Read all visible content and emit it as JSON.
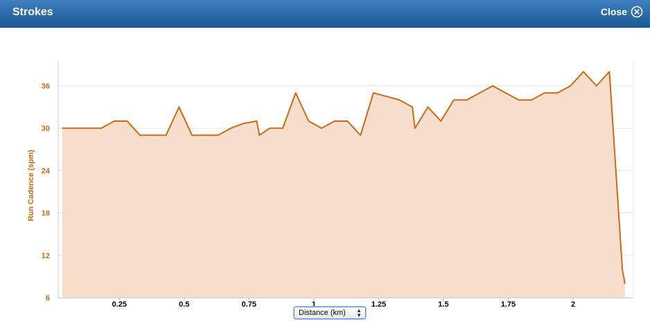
{
  "window": {
    "title": "Strokes",
    "close_label": "Close"
  },
  "x_axis_selector": {
    "selected": "Distance (km)"
  },
  "colors": {
    "accent": "#cc6a14",
    "fill": "#f5dfcc",
    "titlebar": "#2a68a8",
    "grid": "#e6e6e6"
  },
  "chart_data": {
    "type": "area",
    "title": "",
    "xlabel": "Distance (km)",
    "ylabel": "Run Cadence (spm)",
    "xlim": [
      0.03,
      2.2
    ],
    "ylim": [
      6,
      39
    ],
    "x_ticks": [
      0.25,
      0.5,
      0.75,
      1,
      1.25,
      1.5,
      1.75,
      2
    ],
    "x_tick_labels": [
      "0.25",
      "0.5",
      "0.75",
      "1",
      "1.25",
      "1.5",
      "1.75",
      "2"
    ],
    "y_ticks": [
      6,
      12,
      18,
      24,
      30,
      36
    ],
    "y_tick_labels": [
      "6",
      "12",
      "18",
      "24",
      "30",
      "36"
    ],
    "grid": true,
    "series": [
      {
        "x": [
          0.03,
          0.08,
          0.13,
          0.18,
          0.23,
          0.28,
          0.33,
          0.38,
          0.43,
          0.48,
          0.53,
          0.58,
          0.63,
          0.68,
          0.73,
          0.78,
          0.79,
          0.83,
          0.88,
          0.93,
          0.98,
          1.03,
          1.08,
          1.13,
          1.18,
          1.23,
          1.28,
          1.33,
          1.38,
          1.39,
          1.44,
          1.49,
          1.54,
          1.59,
          1.64,
          1.69,
          1.74,
          1.79,
          1.84,
          1.89,
          1.94,
          1.99,
          2.04,
          2.09,
          2.14,
          2.19,
          2.2
        ],
        "values": [
          30,
          30,
          30,
          30,
          31,
          31,
          29,
          29,
          29,
          33,
          29,
          29,
          29,
          30,
          30.7,
          31,
          29,
          30,
          30,
          35,
          31,
          30,
          31,
          31,
          29,
          35,
          34.5,
          34,
          33,
          30,
          33,
          31,
          34,
          34,
          35,
          36,
          35,
          34,
          34,
          35,
          35,
          36,
          38,
          36,
          38,
          10,
          8
        ]
      }
    ]
  }
}
